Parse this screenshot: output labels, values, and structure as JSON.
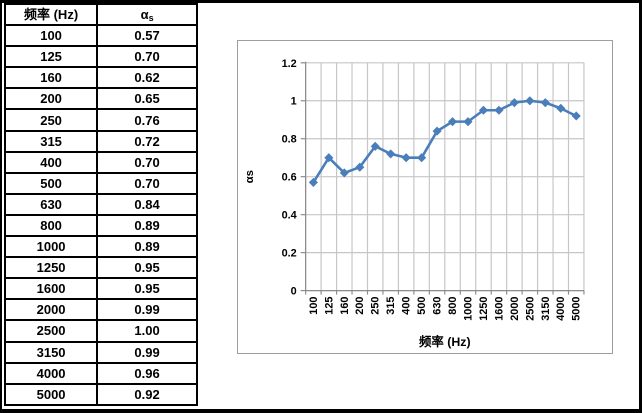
{
  "table": {
    "headers": {
      "col1": "频率 (Hz)",
      "col2_main": "α",
      "col2_sub": "s"
    },
    "frequencies": [
      "100",
      "125",
      "160",
      "200",
      "250",
      "315",
      "400",
      "500",
      "630",
      "800",
      "1000",
      "1250",
      "1600",
      "2000",
      "2500",
      "3150",
      "4000",
      "5000"
    ],
    "alphas": [
      "0.57",
      "0.70",
      "0.62",
      "0.65",
      "0.76",
      "0.72",
      "0.70",
      "0.70",
      "0.84",
      "0.89",
      "0.89",
      "0.95",
      "0.95",
      "0.99",
      "1.00",
      "0.99",
      "0.96",
      "0.92"
    ]
  },
  "chart": {
    "colors": {
      "series": "#4a7ebb",
      "gridline": "#c6c6c6",
      "axis": "#8c8c8c",
      "chart_border": "#9e9e9e",
      "text": "#000000"
    }
  },
  "chart_data": {
    "type": "line",
    "categories": [
      "100",
      "125",
      "160",
      "200",
      "250",
      "315",
      "400",
      "500",
      "630",
      "800",
      "1000",
      "1250",
      "1600",
      "2000",
      "2500",
      "3150",
      "4000",
      "5000"
    ],
    "values": [
      0.57,
      0.7,
      0.62,
      0.65,
      0.76,
      0.72,
      0.7,
      0.7,
      0.84,
      0.89,
      0.89,
      0.95,
      0.95,
      0.99,
      1.0,
      0.99,
      0.96,
      0.92
    ],
    "title": "",
    "xlabel": "频率 (Hz)",
    "ylabel": "αs",
    "ylim": [
      0,
      1.2
    ],
    "y_ticks": [
      "0",
      "0.2",
      "0.4",
      "0.6",
      "0.8",
      "1",
      "1.2"
    ],
    "grid": true,
    "legend": "none",
    "marker": "diamond"
  }
}
